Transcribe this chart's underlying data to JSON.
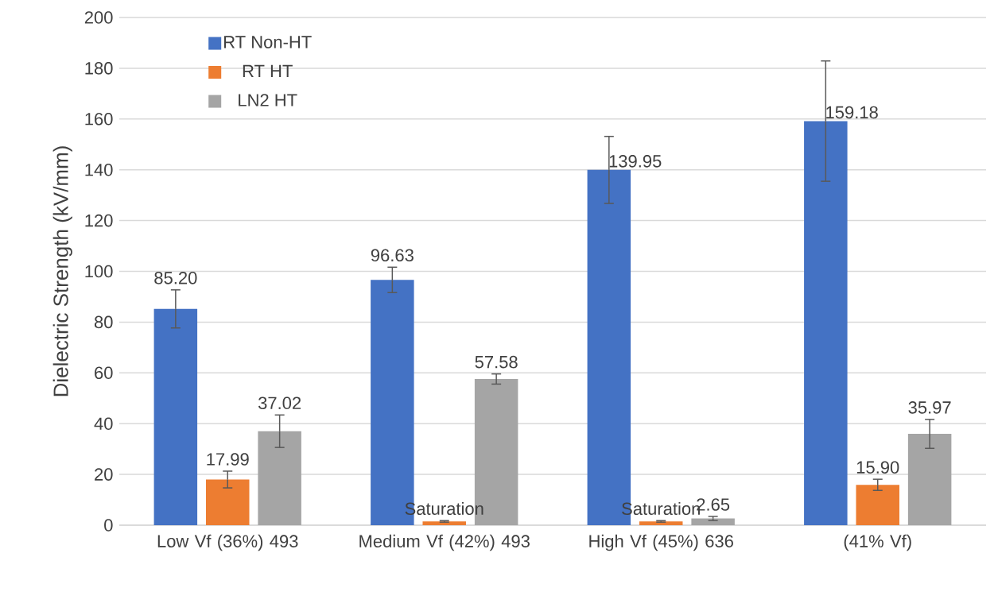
{
  "chart_data": {
    "type": "bar",
    "ylabel": "Dielectric Strength (kV/mm)",
    "categories": [
      "Low Vf (36%) 493",
      "Medium Vf (42%) 493",
      "High Vf (45%) 636",
      "(41% Vf)"
    ],
    "series": [
      {
        "name": "RT Non-HT",
        "color": "#4472c4",
        "values": [
          85.2,
          96.63,
          139.95,
          159.18
        ],
        "errors": [
          7.5,
          5,
          13.2,
          23.7
        ],
        "value_labels": [
          "85.20",
          "96.63",
          "139.95",
          "159.18"
        ]
      },
      {
        "name": "RT HT",
        "color": "#ed7d31",
        "values": [
          17.99,
          1.5,
          1.5,
          15.9
        ],
        "errors": [
          3.3,
          0.3,
          0.3,
          2.2
        ],
        "value_labels": [
          "17.99",
          "Saturation",
          "Saturation",
          "15.90"
        ]
      },
      {
        "name": "LN2 HT",
        "color": "#a5a5a5",
        "values": [
          37.02,
          57.58,
          2.65,
          35.97
        ],
        "errors": [
          6.4,
          2,
          0.8,
          5.7
        ],
        "value_labels": [
          "37.02",
          "57.58",
          "2.65",
          "35.97"
        ]
      }
    ],
    "ylim": [
      0,
      200
    ],
    "yticks": [
      0,
      20,
      40,
      60,
      80,
      100,
      120,
      140,
      160,
      180,
      200
    ],
    "grid": "y",
    "legend": "top left"
  }
}
